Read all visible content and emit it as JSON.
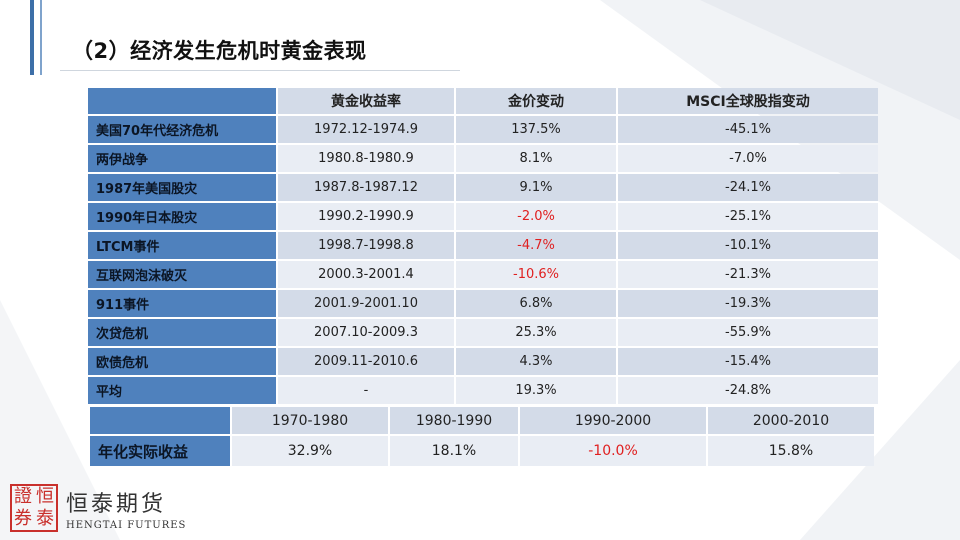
{
  "title": "（2）经济发生危机时黄金表现",
  "events_table": {
    "headers": [
      "黄金收益率",
      "金价变动",
      "MSCI全球股指变动"
    ],
    "rows": [
      {
        "event": "美国70年代经济危机",
        "period": "1972.12-1974.9",
        "gold": "137.5%",
        "msci": "-45.1%"
      },
      {
        "event": "两伊战争",
        "period": "1980.8-1980.9",
        "gold": "8.1%",
        "msci": "-7.0%"
      },
      {
        "event": "1987年美国股灾",
        "period": "1987.8-1987.12",
        "gold": "9.1%",
        "msci": "-24.1%"
      },
      {
        "event": "1990年日本股灾",
        "period": "1990.2-1990.9",
        "gold": "-2.0%",
        "msci": "-25.1%"
      },
      {
        "event": "LTCM事件",
        "period": "1998.7-1998.8",
        "gold": "-4.7%",
        "msci": "-10.1%"
      },
      {
        "event": "互联网泡沫破灭",
        "period": "2000.3-2001.4",
        "gold": "-10.6%",
        "msci": "-21.3%"
      },
      {
        "event": "911事件",
        "period": "2001.9-2001.10",
        "gold": "6.8%",
        "msci": "-19.3%"
      },
      {
        "event": "次贷危机",
        "period": "2007.10-2009.3",
        "gold": "25.3%",
        "msci": "-55.9%"
      },
      {
        "event": "欧债危机",
        "period": "2009.11-2010.6",
        "gold": "4.3%",
        "msci": "-15.4%"
      },
      {
        "event": "平均",
        "period": "-",
        "gold": "19.3%",
        "msci": "-24.8%"
      }
    ]
  },
  "annual_table": {
    "headers": [
      "1970-1980",
      "1980-1990",
      "1990-2000",
      "2000-2010"
    ],
    "row_label": "年化实际收益",
    "values": [
      "32.9%",
      "18.1%",
      "-10.0%",
      "15.8%"
    ]
  },
  "logo": {
    "seal_chars": [
      "證",
      "恒",
      "券",
      "泰"
    ],
    "name_cn": "恒泰期货",
    "name_en": "HENGTAI FUTURES"
  },
  "colors": {
    "accent": "#4f81bd",
    "cell_dark": "#d3dbe8",
    "cell_light": "#e9edf4",
    "negative": "#e02020",
    "seal": "#c9302c"
  }
}
